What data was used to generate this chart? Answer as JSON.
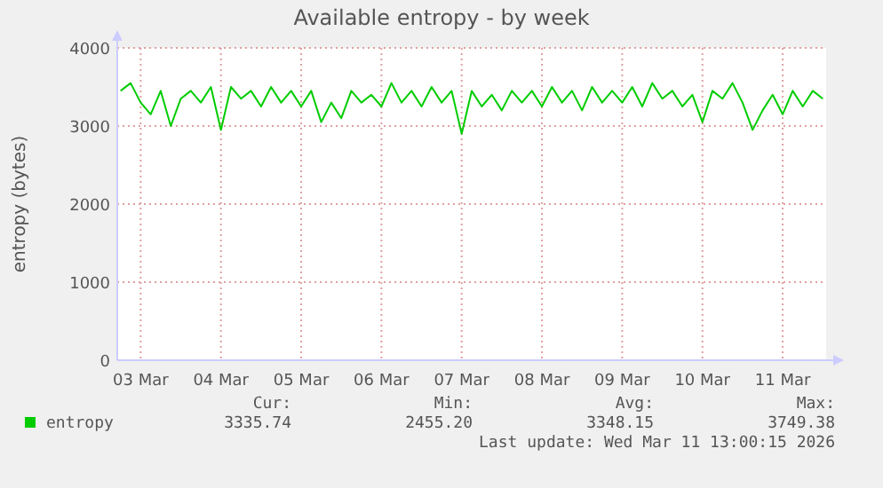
{
  "chart_data": {
    "type": "line",
    "title": "Available entropy - by week",
    "ylabel": "entropy (bytes)",
    "x": [
      "2026-03-02T18:00",
      "2026-03-02T21:00",
      "2026-03-03T00:00",
      "2026-03-03T03:00",
      "2026-03-03T06:00",
      "2026-03-03T09:00",
      "2026-03-03T12:00",
      "2026-03-03T15:00",
      "2026-03-03T18:00",
      "2026-03-03T21:00",
      "2026-03-04T00:00",
      "2026-03-04T03:00",
      "2026-03-04T06:00",
      "2026-03-04T09:00",
      "2026-03-04T12:00",
      "2026-03-04T15:00",
      "2026-03-04T18:00",
      "2026-03-04T21:00",
      "2026-03-05T00:00",
      "2026-03-05T03:00",
      "2026-03-05T06:00",
      "2026-03-05T09:00",
      "2026-03-05T12:00",
      "2026-03-05T15:00",
      "2026-03-05T18:00",
      "2026-03-05T21:00",
      "2026-03-06T00:00",
      "2026-03-06T03:00",
      "2026-03-06T06:00",
      "2026-03-06T09:00",
      "2026-03-06T12:00",
      "2026-03-06T15:00",
      "2026-03-06T18:00",
      "2026-03-06T21:00",
      "2026-03-07T00:00",
      "2026-03-07T03:00",
      "2026-03-07T06:00",
      "2026-03-07T09:00",
      "2026-03-07T12:00",
      "2026-03-07T15:00",
      "2026-03-07T18:00",
      "2026-03-07T21:00",
      "2026-03-08T00:00",
      "2026-03-08T03:00",
      "2026-03-08T06:00",
      "2026-03-08T09:00",
      "2026-03-08T12:00",
      "2026-03-08T15:00",
      "2026-03-08T18:00",
      "2026-03-08T21:00",
      "2026-03-09T00:00",
      "2026-03-09T03:00",
      "2026-03-09T06:00",
      "2026-03-09T09:00",
      "2026-03-09T12:00",
      "2026-03-09T15:00",
      "2026-03-09T18:00",
      "2026-03-09T21:00",
      "2026-03-10T00:00",
      "2026-03-10T03:00",
      "2026-03-10T06:00",
      "2026-03-10T09:00",
      "2026-03-10T12:00",
      "2026-03-10T15:00",
      "2026-03-10T18:00",
      "2026-03-10T21:00",
      "2026-03-11T00:00",
      "2026-03-11T03:00",
      "2026-03-11T06:00",
      "2026-03-11T09:00",
      "2026-03-11T12:00"
    ],
    "series": [
      {
        "name": "entropy",
        "color": "#00cc00",
        "values": [
          3450,
          3550,
          3300,
          3150,
          3450,
          3000,
          3350,
          3450,
          3300,
          3500,
          2950,
          3500,
          3350,
          3450,
          3250,
          3500,
          3300,
          3450,
          3250,
          3450,
          3050,
          3300,
          3100,
          3450,
          3300,
          3400,
          3250,
          3550,
          3300,
          3450,
          3250,
          3500,
          3300,
          3450,
          2900,
          3450,
          3250,
          3400,
          3200,
          3450,
          3300,
          3450,
          3250,
          3500,
          3300,
          3450,
          3200,
          3500,
          3300,
          3450,
          3300,
          3500,
          3250,
          3550,
          3350,
          3450,
          3250,
          3400,
          3050,
          3450,
          3350,
          3550,
          3300,
          2950,
          3200,
          3400,
          3150,
          3450,
          3250,
          3450,
          3350
        ]
      }
    ],
    "xlim": [
      "2026-03-02T17:00",
      "2026-03-11T13:00"
    ],
    "xticks": [
      {
        "value": "2026-03-03",
        "label": "03 Mar"
      },
      {
        "value": "2026-03-04",
        "label": "04 Mar"
      },
      {
        "value": "2026-03-05",
        "label": "05 Mar"
      },
      {
        "value": "2026-03-06",
        "label": "06 Mar"
      },
      {
        "value": "2026-03-07",
        "label": "07 Mar"
      },
      {
        "value": "2026-03-08",
        "label": "08 Mar"
      },
      {
        "value": "2026-03-09",
        "label": "09 Mar"
      },
      {
        "value": "2026-03-10",
        "label": "10 Mar"
      },
      {
        "value": "2026-03-11",
        "label": "11 Mar"
      }
    ],
    "ylim": [
      0,
      4000
    ],
    "yticks": [
      0,
      1000,
      2000,
      3000,
      4000
    ],
    "grid": true,
    "legend": "bottom left",
    "marker": "none",
    "line_style": "solid",
    "annotations": [
      "Cur:",
      "Min:",
      "Avg:",
      "Max:",
      "3335.74",
      "2455.20",
      "3348.15",
      "3749.38",
      "Last update: Wed Mar 11 13:00:15 2026"
    ]
  }
}
